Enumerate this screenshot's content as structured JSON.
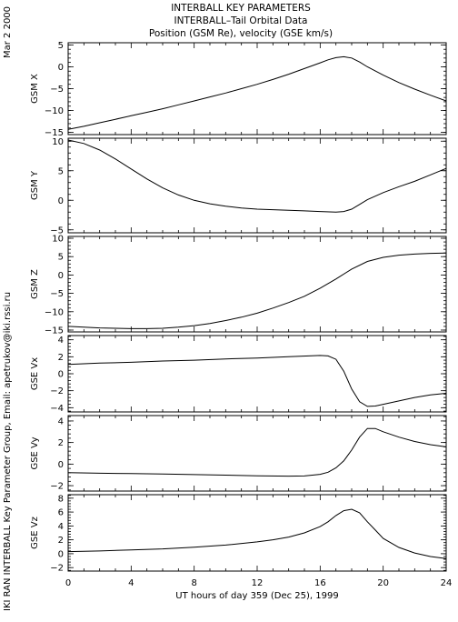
{
  "side_date": "Mar  2 2000",
  "side_credit": "IKI RAN INTERBALL Key Parameter Group, Email: apetrukov@iki.rssi.ru",
  "title_lines": [
    "INTERBALL KEY PARAMETERS",
    "INTERBALL–Tail Orbital Data",
    "Position (GSM Re), velocity (GSE km/s)"
  ],
  "chart_data": {
    "type": "line",
    "xlabel": "UT hours of day 359 (Dec 25), 1999",
    "xlim": [
      0,
      24
    ],
    "xticks": [
      0,
      4,
      8,
      12,
      16,
      20,
      24
    ],
    "panels": [
      {
        "ylabel": "GSM X",
        "ylim": [
          -15.5,
          5.5
        ],
        "yticks": [
          5,
          0,
          -5,
          -10,
          -15
        ],
        "x": [
          0,
          1,
          2,
          3,
          4,
          5,
          6,
          7,
          8,
          9,
          10,
          11,
          12,
          13,
          14,
          15,
          16,
          16.5,
          17,
          17.5,
          18,
          18.5,
          19,
          20,
          21,
          22,
          23,
          24
        ],
        "y": [
          -14.3,
          -13.6,
          -12.8,
          -12.0,
          -11.2,
          -10.4,
          -9.6,
          -8.7,
          -7.8,
          -6.9,
          -6.0,
          -5.0,
          -4.0,
          -2.9,
          -1.7,
          -0.4,
          0.9,
          1.6,
          2.1,
          2.3,
          2.0,
          1.1,
          0.0,
          -1.9,
          -3.6,
          -5.1,
          -6.5,
          -7.8
        ]
      },
      {
        "ylabel": "GSM Y",
        "ylim": [
          -5.5,
          10.5
        ],
        "yticks": [
          10,
          5,
          0,
          -5
        ],
        "x": [
          0,
          1,
          2,
          3,
          4,
          5,
          6,
          7,
          8,
          9,
          10,
          11,
          12,
          13,
          14,
          15,
          16,
          17,
          17.5,
          18,
          18.5,
          19,
          20,
          21,
          22,
          23,
          24
        ],
        "y": [
          10.2,
          9.6,
          8.5,
          7.0,
          5.3,
          3.6,
          2.1,
          0.9,
          0.0,
          -0.6,
          -1.0,
          -1.3,
          -1.5,
          -1.6,
          -1.7,
          -1.8,
          -1.9,
          -2.0,
          -1.9,
          -1.5,
          -0.7,
          0.1,
          1.3,
          2.3,
          3.2,
          4.3,
          5.4
        ]
      },
      {
        "ylabel": "GSM Z",
        "ylim": [
          -15.5,
          10.5
        ],
        "yticks": [
          10,
          5,
          0,
          -5,
          -10,
          -15
        ],
        "x": [
          0,
          1,
          2,
          3,
          4,
          5,
          6,
          7,
          8,
          9,
          10,
          11,
          12,
          13,
          14,
          15,
          16,
          17,
          18,
          19,
          20,
          21,
          22,
          23,
          24
        ],
        "y": [
          -14.0,
          -14.2,
          -14.4,
          -14.5,
          -14.6,
          -14.6,
          -14.5,
          -14.2,
          -13.8,
          -13.2,
          -12.4,
          -11.5,
          -10.4,
          -9.0,
          -7.5,
          -5.8,
          -3.6,
          -1.1,
          1.6,
          3.7,
          4.8,
          5.4,
          5.7,
          5.9,
          6.0
        ]
      },
      {
        "ylabel": "GSE Vx",
        "ylim": [
          -4.5,
          4.5
        ],
        "yticks": [
          4,
          2,
          0,
          -2,
          -4
        ],
        "x": [
          0,
          2,
          4,
          6,
          8,
          10,
          12,
          14,
          16,
          16.5,
          17,
          17.5,
          18,
          18.5,
          19,
          19.5,
          20,
          21,
          22,
          23,
          24
        ],
        "y": [
          1.1,
          1.25,
          1.35,
          1.5,
          1.6,
          1.75,
          1.85,
          2.0,
          2.15,
          2.1,
          1.7,
          0.3,
          -1.8,
          -3.3,
          -3.85,
          -3.8,
          -3.6,
          -3.2,
          -2.8,
          -2.5,
          -2.3
        ]
      },
      {
        "ylabel": "GSE Vy",
        "ylim": [
          -2.5,
          4.5
        ],
        "yticks": [
          4,
          2,
          0,
          -2
        ],
        "x": [
          0,
          2,
          4,
          6,
          8,
          10,
          12,
          14,
          15,
          16,
          16.5,
          17,
          17.5,
          18,
          18.5,
          19,
          19.5,
          20,
          21,
          22,
          23,
          24
        ],
        "y": [
          -0.8,
          -0.85,
          -0.88,
          -0.92,
          -0.97,
          -1.02,
          -1.08,
          -1.12,
          -1.1,
          -0.95,
          -0.75,
          -0.35,
          0.3,
          1.3,
          2.5,
          3.3,
          3.3,
          3.0,
          2.5,
          2.1,
          1.8,
          1.6
        ]
      },
      {
        "ylabel": "GSE Vz",
        "ylim": [
          -2.5,
          8.5
        ],
        "yticks": [
          8,
          6,
          4,
          2,
          0,
          -2
        ],
        "x": [
          0,
          2,
          4,
          6,
          8,
          10,
          12,
          13,
          14,
          15,
          16,
          16.5,
          17,
          17.5,
          18,
          18.5,
          19,
          19.5,
          20,
          21,
          22,
          23,
          24
        ],
        "y": [
          0.3,
          0.4,
          0.55,
          0.7,
          0.95,
          1.25,
          1.7,
          2.0,
          2.4,
          3.0,
          3.9,
          4.6,
          5.5,
          6.2,
          6.4,
          5.9,
          4.6,
          3.4,
          2.2,
          0.9,
          0.1,
          -0.4,
          -0.7
        ]
      }
    ]
  }
}
